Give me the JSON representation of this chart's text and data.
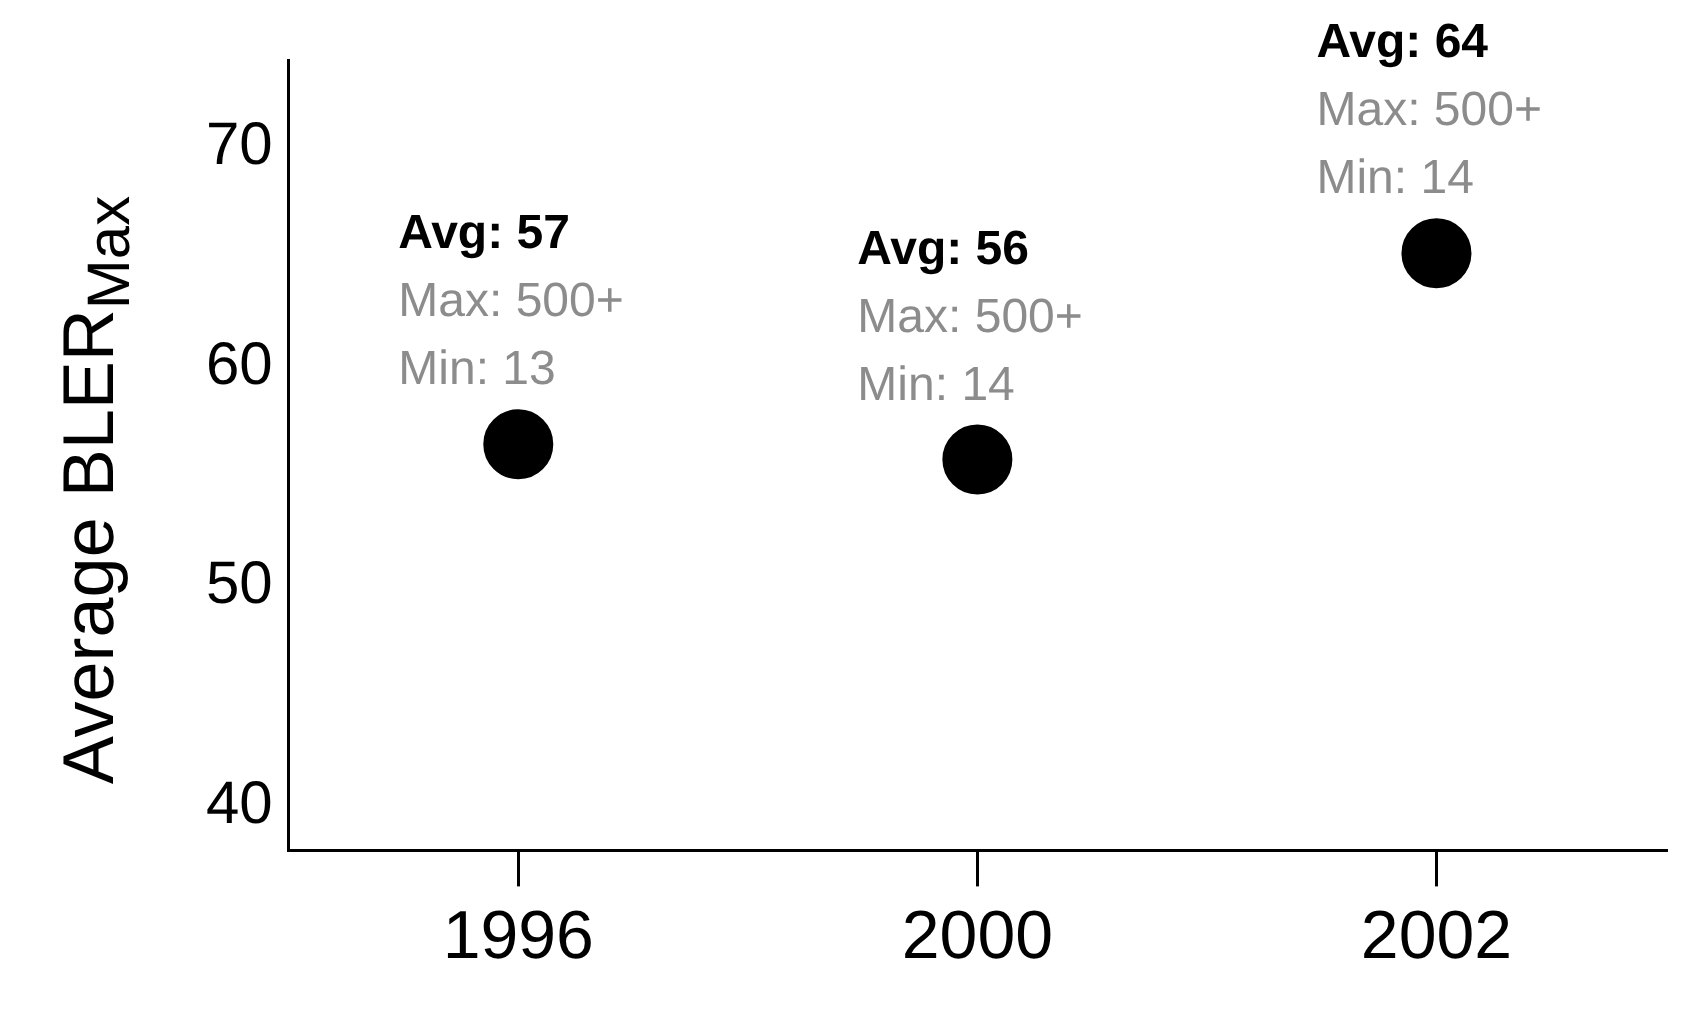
{
  "chart_data": {
    "type": "scatter",
    "ylabel": "Average BLER$_{Max}$",
    "categories": [
      "1996",
      "2000",
      "2002"
    ],
    "series": [
      {
        "color": "#000000",
        "values": [
          56.5,
          55.8,
          65.2
        ]
      }
    ],
    "ylim": [
      38,
      74
    ],
    "yticks": [
      40,
      50,
      60,
      70
    ],
    "grid": false,
    "legend": false,
    "marker": "circle",
    "annotations": [
      "Avg: 57",
      "Max: 500+",
      "Min: 13",
      "Avg: 56",
      "Max: 500+",
      "Min: 14",
      "Avg: 64",
      "Max: 500+",
      "Min: 14"
    ]
  }
}
